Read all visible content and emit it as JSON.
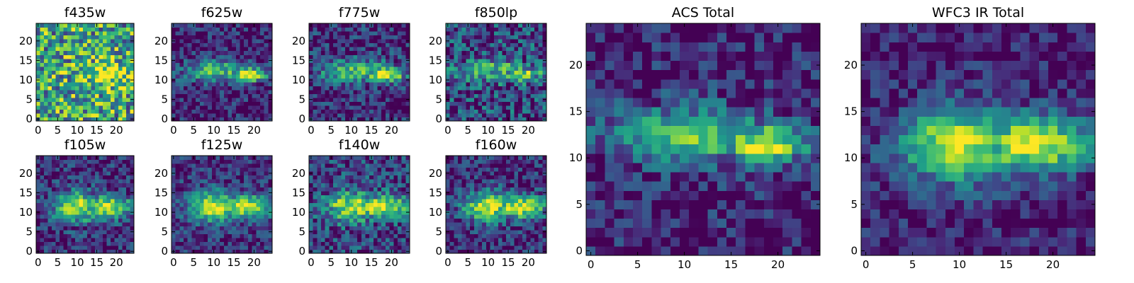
{
  "chart_data": [
    {
      "type": "heatmap",
      "title": "f435w",
      "x_ticks": [
        "0",
        "5",
        "10",
        "15",
        "20"
      ],
      "y_ticks": [
        "0",
        "5",
        "10",
        "15",
        "20"
      ],
      "xlim": [
        -0.5,
        24.5
      ],
      "ylim": [
        -0.5,
        24.5
      ],
      "grid_size": 25,
      "colormap": "viridis",
      "source": "noisy",
      "noise": 0.65,
      "base": 0.55,
      "structure": 0.35
    },
    {
      "type": "heatmap",
      "title": "f625w",
      "x_ticks": [
        "0",
        "5",
        "10",
        "15",
        "20"
      ],
      "y_ticks": [
        "0",
        "5",
        "10",
        "15",
        "20"
      ],
      "xlim": [
        -0.5,
        24.5
      ],
      "ylim": [
        -0.5,
        24.5
      ],
      "grid_size": 25,
      "colormap": "viridis",
      "source": "band",
      "noise": 0.3,
      "base": 0.15,
      "structure": 0.85
    },
    {
      "type": "heatmap",
      "title": "f775w",
      "x_ticks": [
        "0",
        "5",
        "10",
        "15",
        "20"
      ],
      "y_ticks": [
        "0",
        "5",
        "10",
        "15",
        "20"
      ],
      "xlim": [
        -0.5,
        24.5
      ],
      "ylim": [
        -0.5,
        24.5
      ],
      "grid_size": 25,
      "colormap": "viridis",
      "source": "band",
      "noise": 0.32,
      "base": 0.2,
      "structure": 0.85
    },
    {
      "type": "heatmap",
      "title": "f850lp",
      "x_ticks": [
        "0",
        "5",
        "10",
        "15",
        "20"
      ],
      "y_ticks": [
        "0",
        "5",
        "10",
        "15",
        "20"
      ],
      "xlim": [
        -0.5,
        24.5
      ],
      "ylim": [
        -0.5,
        24.5
      ],
      "grid_size": 25,
      "colormap": "viridis",
      "source": "band",
      "noise": 0.4,
      "base": 0.35,
      "structure": 0.6
    },
    {
      "type": "heatmap",
      "title": "f105w",
      "x_ticks": [
        "0",
        "5",
        "10",
        "15",
        "20"
      ],
      "y_ticks": [
        "0",
        "5",
        "10",
        "15",
        "20"
      ],
      "xlim": [
        -0.5,
        24.5
      ],
      "ylim": [
        -0.5,
        24.5
      ],
      "grid_size": 25,
      "colormap": "viridis",
      "source": "blob",
      "noise": 0.3,
      "base": 0.2,
      "structure": 0.8
    },
    {
      "type": "heatmap",
      "title": "f125w",
      "x_ticks": [
        "0",
        "5",
        "10",
        "15",
        "20"
      ],
      "y_ticks": [
        "0",
        "5",
        "10",
        "15",
        "20"
      ],
      "xlim": [
        -0.5,
        24.5
      ],
      "ylim": [
        -0.5,
        24.5
      ],
      "grid_size": 25,
      "colormap": "viridis",
      "source": "blob",
      "noise": 0.25,
      "base": 0.25,
      "structure": 0.8
    },
    {
      "type": "heatmap",
      "title": "f140w",
      "x_ticks": [
        "0",
        "5",
        "10",
        "15",
        "20"
      ],
      "y_ticks": [
        "0",
        "5",
        "10",
        "15",
        "20"
      ],
      "xlim": [
        -0.5,
        24.5
      ],
      "ylim": [
        -0.5,
        24.5
      ],
      "grid_size": 25,
      "colormap": "viridis",
      "source": "blob",
      "noise": 0.35,
      "base": 0.3,
      "structure": 0.75
    },
    {
      "type": "heatmap",
      "title": "f160w",
      "x_ticks": [
        "0",
        "5",
        "10",
        "15",
        "20"
      ],
      "y_ticks": [
        "0",
        "5",
        "10",
        "15",
        "20"
      ],
      "xlim": [
        -0.5,
        24.5
      ],
      "ylim": [
        -0.5,
        24.5
      ],
      "grid_size": 25,
      "colormap": "viridis",
      "source": "blob",
      "noise": 0.3,
      "base": 0.2,
      "structure": 0.85
    },
    {
      "type": "heatmap",
      "title": "ACS Total",
      "x_ticks": [
        "0",
        "5",
        "10",
        "15",
        "20"
      ],
      "y_ticks": [
        "0",
        "5",
        "10",
        "15",
        "20"
      ],
      "xlim": [
        -0.5,
        24.5
      ],
      "ylim": [
        -0.5,
        24.5
      ],
      "grid_size": 25,
      "colormap": "viridis",
      "source": "band",
      "noise": 0.28,
      "base": 0.15,
      "structure": 0.9
    },
    {
      "type": "heatmap",
      "title": "WFC3 IR Total",
      "x_ticks": [
        "0",
        "5",
        "10",
        "15",
        "20"
      ],
      "y_ticks": [
        "0",
        "5",
        "10",
        "15",
        "20"
      ],
      "xlim": [
        -0.5,
        24.5
      ],
      "ylim": [
        -0.5,
        24.5
      ],
      "grid_size": 25,
      "colormap": "viridis",
      "source": "blob",
      "noise": 0.22,
      "base": 0.15,
      "structure": 0.9
    }
  ]
}
